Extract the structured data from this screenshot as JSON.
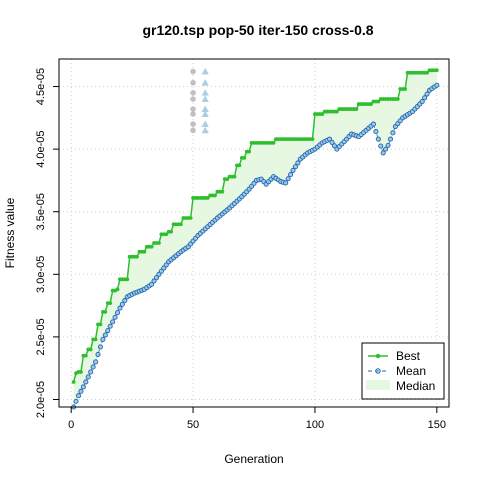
{
  "chart_data": {
    "type": "line",
    "title": "gr120.tsp pop-50 iter-150 cross-0.8",
    "xlabel": "Generation",
    "ylabel": "Fitness value",
    "xlim": [
      -5,
      155
    ],
    "ylim": [
      1.94e-05,
      4.72e-05
    ],
    "x_ticks": [
      0,
      50,
      100,
      150
    ],
    "x_tick_labels": [
      "0",
      "50",
      "100",
      "150"
    ],
    "y_ticks": [
      2e-05,
      2.5e-05,
      3e-05,
      3.5e-05,
      4e-05,
      4.5e-05
    ],
    "y_tick_labels": [
      "2.0e-05",
      "2.5e-05",
      "3.0e-05",
      "3.5e-05",
      "4.0e-05",
      "4.5e-05"
    ],
    "grid": true,
    "legend_position": "bottom-right",
    "colors": {
      "best": "#2ebf2e",
      "mean": "#2166ac",
      "mean_fill": "#9ec8e8",
      "median_fill": "#e6f8e2",
      "overlay_grey": "#c0c0c0",
      "overlay_blue": "#a9cfe0",
      "grid": "#d0d0d0"
    },
    "series": [
      {
        "name": "Best",
        "style": "line-points",
        "keypoints": [
          [
            1,
            2.14e-05
          ],
          [
            2,
            2.21e-05
          ],
          [
            3,
            2.22e-05
          ],
          [
            5,
            2.35e-05
          ],
          [
            7,
            2.4e-05
          ],
          [
            9,
            2.48e-05
          ],
          [
            11,
            2.6e-05
          ],
          [
            13,
            2.7e-05
          ],
          [
            15,
            2.77e-05
          ],
          [
            17,
            2.87e-05
          ],
          [
            19,
            2.88e-05
          ],
          [
            20,
            2.96e-05
          ],
          [
            24,
            3.14e-05
          ],
          [
            28,
            3.18e-05
          ],
          [
            31,
            3.22e-05
          ],
          [
            34,
            3.25e-05
          ],
          [
            37,
            3.32e-05
          ],
          [
            40,
            3.34e-05
          ],
          [
            42,
            3.4e-05
          ],
          [
            46,
            3.45e-05
          ],
          [
            50,
            3.61e-05
          ],
          [
            57,
            3.63e-05
          ],
          [
            60,
            3.66e-05
          ],
          [
            63,
            3.76e-05
          ],
          [
            65,
            3.78e-05
          ],
          [
            68,
            3.87e-05
          ],
          [
            70,
            3.93e-05
          ],
          [
            72,
            3.98e-05
          ],
          [
            74,
            4.05e-05
          ],
          [
            84,
            4.08e-05
          ],
          [
            100,
            4.28e-05
          ],
          [
            104,
            4.3e-05
          ],
          [
            110,
            4.32e-05
          ],
          [
            118,
            4.36e-05
          ],
          [
            124,
            4.38e-05
          ],
          [
            127,
            4.4e-05
          ],
          [
            135,
            4.48e-05
          ],
          [
            138,
            4.61e-05
          ],
          [
            147,
            4.63e-05
          ],
          [
            150,
            4.63e-05
          ]
        ]
      },
      {
        "name": "Mean",
        "style": "dashed-points",
        "keypoints": [
          [
            1,
            1.94e-05
          ],
          [
            3,
            2.03e-05
          ],
          [
            5,
            2.1e-05
          ],
          [
            8,
            2.22e-05
          ],
          [
            10,
            2.3e-05
          ],
          [
            13,
            2.48e-05
          ],
          [
            17,
            2.62e-05
          ],
          [
            20,
            2.73e-05
          ],
          [
            23,
            2.82e-05
          ],
          [
            26,
            2.85e-05
          ],
          [
            30,
            2.88e-05
          ],
          [
            33,
            2.92e-05
          ],
          [
            36,
            3e-05
          ],
          [
            40,
            3.1e-05
          ],
          [
            45,
            3.18e-05
          ],
          [
            48,
            3.22e-05
          ],
          [
            52,
            3.31e-05
          ],
          [
            56,
            3.38e-05
          ],
          [
            60,
            3.45e-05
          ],
          [
            65,
            3.53e-05
          ],
          [
            70,
            3.62e-05
          ],
          [
            73,
            3.68e-05
          ],
          [
            76,
            3.75e-05
          ],
          [
            78,
            3.76e-05
          ],
          [
            80,
            3.72e-05
          ],
          [
            83,
            3.78e-05
          ],
          [
            86,
            3.74e-05
          ],
          [
            88,
            3.73e-05
          ],
          [
            91,
            3.83e-05
          ],
          [
            94,
            3.92e-05
          ],
          [
            97,
            3.97e-05
          ],
          [
            100,
            4e-05
          ],
          [
            103,
            4.05e-05
          ],
          [
            106,
            4.08e-05
          ],
          [
            109,
            4e-05
          ],
          [
            112,
            4.06e-05
          ],
          [
            115,
            4.12e-05
          ],
          [
            118,
            4.1e-05
          ],
          [
            121,
            4.15e-05
          ],
          [
            124,
            4.2e-05
          ],
          [
            126,
            4.08e-05
          ],
          [
            128,
            3.97e-05
          ],
          [
            130,
            4.03e-05
          ],
          [
            133,
            4.18e-05
          ],
          [
            136,
            4.25e-05
          ],
          [
            140,
            4.3e-05
          ],
          [
            144,
            4.38e-05
          ],
          [
            147,
            4.47e-05
          ],
          [
            150,
            4.51e-05
          ]
        ]
      },
      {
        "name": "Median",
        "style": "area-between-best-and-mean"
      }
    ],
    "overlay_markers": [
      {
        "shape": "circle",
        "x": 50,
        "y": [
          4.62e-05,
          4.53e-05,
          4.45e-05,
          4.4e-05,
          4.32e-05,
          4.28e-05,
          4.2e-05,
          4.15e-05
        ]
      },
      {
        "shape": "triangle",
        "x": 55,
        "y": [
          4.62e-05,
          4.53e-05,
          4.45e-05,
          4.4e-05,
          4.32e-05,
          4.28e-05,
          4.2e-05,
          4.15e-05
        ]
      }
    ]
  }
}
